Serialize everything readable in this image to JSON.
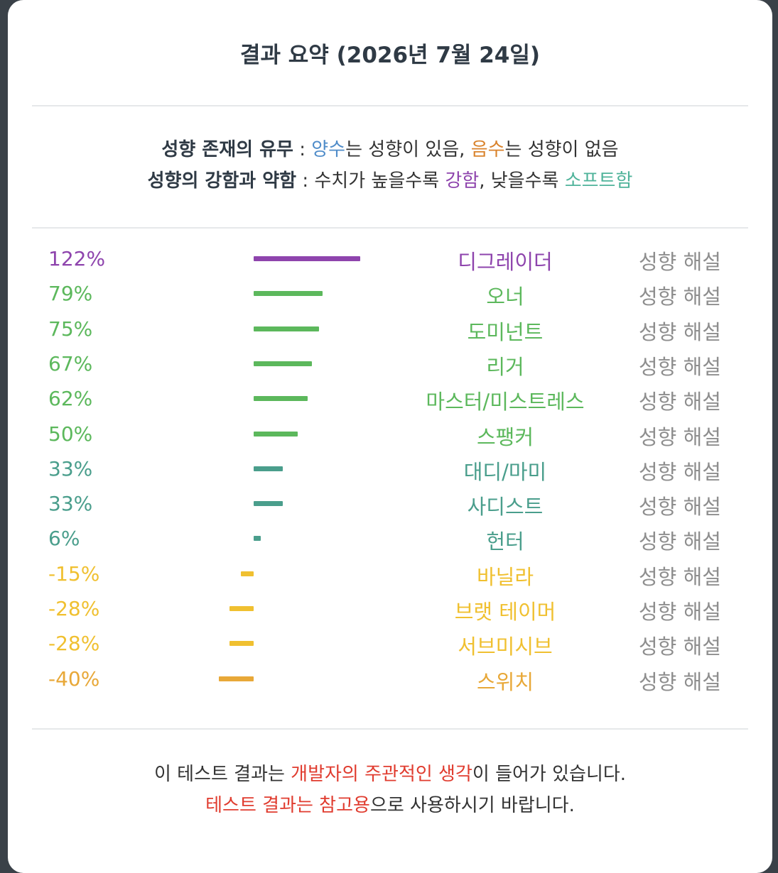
{
  "title": "결과 요약 (2026년 7월 24일)",
  "legend": {
    "line1": {
      "label": "성향 존재의 유무",
      "sep": " : ",
      "positive": "양수",
      "positive_text": "는 성향이 있음, ",
      "negative": "음수",
      "negative_text": "는 성향이 없음"
    },
    "line2": {
      "label": "성향의 강함과 약함",
      "sep": " : 수치가 높을수록 ",
      "strong": "강함",
      "middle": ", 낮을수록 ",
      "soft": "소프트함"
    }
  },
  "explain_label": "성향 해설",
  "colors": {
    "purple": "#8e44ad",
    "green": "#5cb85c",
    "teal": "#4a9e8c",
    "yellow": "#f0c030",
    "orange": "#e8a838"
  },
  "chart_data": {
    "type": "bar",
    "orientation": "horizontal",
    "unit": "%",
    "categories": [
      "디그레이더",
      "오너",
      "도미넌트",
      "리거",
      "마스터/미스트레스",
      "스팽커",
      "대디/마미",
      "사디스트",
      "헌터",
      "바닐라",
      "브랫 테이머",
      "서브미시브",
      "스위치"
    ],
    "values": [
      122,
      79,
      75,
      67,
      62,
      50,
      33,
      33,
      6,
      -15,
      -28,
      -28,
      -40
    ],
    "labels": [
      "122%",
      "79%",
      "75%",
      "67%",
      "62%",
      "50%",
      "33%",
      "33%",
      "6%",
      "-15%",
      "-28%",
      "-28%",
      "-40%"
    ],
    "colors": [
      "#8e44ad",
      "#5cb85c",
      "#5cb85c",
      "#5cb85c",
      "#5cb85c",
      "#5cb85c",
      "#4a9e8c",
      "#4a9e8c",
      "#4a9e8c",
      "#f0c030",
      "#f0c030",
      "#f0c030",
      "#e8a838"
    ]
  },
  "footer": {
    "line1": {
      "pre": "이 테스트 결과는 ",
      "highlight": "개발자의 주관적인 생각",
      "post": "이 들어가 있습니다."
    },
    "line2": {
      "highlight": "테스트 결과는 참고용",
      "post": "으로 사용하시기 바랍니다."
    }
  }
}
